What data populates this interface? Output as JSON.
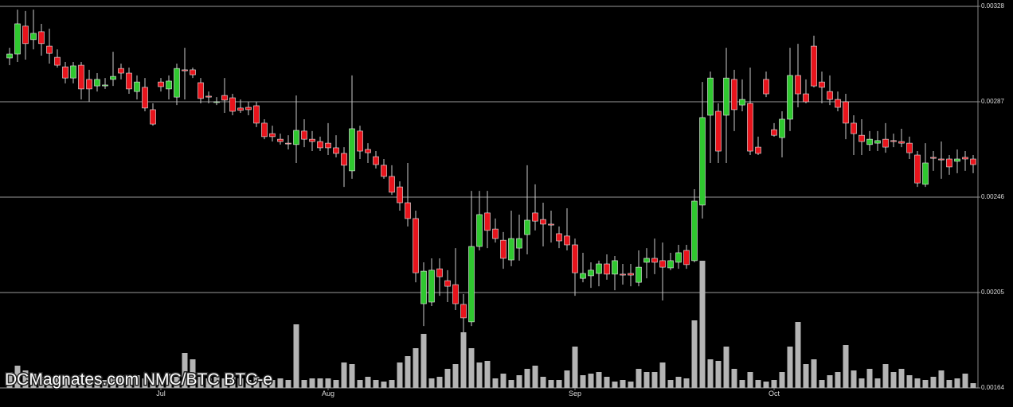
{
  "chart_data": {
    "type": "candlestick",
    "annotation": "DCMagnates.com NMC/BTC BTC-e",
    "categories": [
      null,
      null,
      null,
      null,
      null,
      null,
      null,
      null,
      null,
      null,
      null,
      null,
      null,
      null,
      null,
      null,
      null,
      null,
      null,
      "Jul",
      null,
      null,
      null,
      null,
      null,
      null,
      null,
      null,
      null,
      null,
      null,
      null,
      null,
      null,
      null,
      null,
      null,
      null,
      null,
      null,
      "Aug",
      null,
      null,
      null,
      null,
      null,
      null,
      null,
      null,
      null,
      null,
      null,
      null,
      null,
      null,
      null,
      null,
      null,
      null,
      null,
      null,
      null,
      null,
      null,
      null,
      null,
      null,
      null,
      null,
      null,
      null,
      "Sep",
      null,
      null,
      null,
      null,
      null,
      null,
      null,
      null,
      null,
      null,
      null,
      null,
      null,
      null,
      null,
      null,
      null,
      null,
      null,
      null,
      null,
      null,
      null,
      null,
      "Oct",
      null,
      null,
      null,
      null,
      null,
      null,
      null,
      null,
      null,
      null,
      null,
      null,
      null,
      null,
      null,
      null,
      null,
      null,
      null,
      null,
      null,
      null,
      null,
      null,
      null
    ],
    "open": [
      0.003058,
      0.003075,
      0.003195,
      0.003137,
      0.003171,
      0.003109,
      0.003061,
      0.00302,
      0.002972,
      0.003027,
      0.002966,
      0.002938,
      0.002938,
      0.002966,
      0.003013,
      0.002993,
      0.002914,
      0.002932,
      0.002836,
      0.002955,
      0.002925,
      0.00289,
      0.003007,
      0.003007,
      0.002952,
      0.002894,
      0.002867,
      0.002897,
      0.002887,
      0.002843,
      0.002846,
      0.002853,
      0.002778,
      0.002733,
      0.002709,
      0.002692,
      0.002686,
      0.002744,
      0.002709,
      0.002699,
      0.002692,
      0.002672,
      0.002648,
      0.002573,
      0.002744,
      0.002665,
      0.002634,
      0.002597,
      0.002549,
      0.002504,
      0.002436,
      0.002368,
      0.002002,
      0.002009,
      0.002152,
      0.002101,
      0.002084,
      0.001999,
      0.001924,
      0.002248,
      0.002392,
      0.002323,
      0.002275,
      0.00219,
      0.002241,
      0.002299,
      0.002392,
      0.002364,
      0.002344,
      0.002303,
      0.002293,
      0.002255,
      0.002111,
      0.002122,
      0.002132,
      0.002173,
      0.002129,
      0.002129,
      0.002132,
      0.002094,
      0.00218,
      0.002197,
      0.002187,
      0.002156,
      0.00218,
      0.002231,
      0.002187,
      0.002426,
      0.002812,
      0.002829,
      0.002812,
      0.002966,
      0.002856,
      0.002863,
      0.002675,
      0.002966,
      0.00275,
      0.002716,
      0.002795,
      0.002983,
      0.002904,
      0.003109,
      0.002955,
      0.002914,
      0.00288,
      0.00287,
      0.002778,
      0.002726,
      0.002686,
      0.002692,
      0.002709,
      0.002703,
      0.002699,
      0.002692,
      0.002641,
      0.002515,
      0.002631,
      0.002624,
      0.002624,
      0.002614,
      0.002631,
      0.002624
    ],
    "high": [
      0.003102,
      0.003266,
      0.00326,
      0.003266,
      0.003205,
      0.003184,
      0.003095,
      0.003041,
      0.003041,
      0.003041,
      0.003007,
      0.002993,
      0.002972,
      0.003085,
      0.003034,
      0.003017,
      0.002983,
      0.002972,
      0.002863,
      0.002972,
      0.002983,
      0.003034,
      0.003102,
      0.003017,
      0.002972,
      0.002914,
      0.00289,
      0.002972,
      0.002904,
      0.00288,
      0.00287,
      0.00287,
      0.002795,
      0.002767,
      0.002733,
      0.002726,
      0.002897,
      0.002795,
      0.002744,
      0.00272,
      0.002778,
      0.002726,
      0.002675,
      0.002983,
      0.002767,
      0.002692,
      0.002658,
      0.002624,
      0.002597,
      0.002528,
      0.002607,
      0.002402,
      0.00218,
      0.002197,
      0.002197,
      0.002146,
      0.002241,
      0.002043,
      0.002487,
      0.002487,
      0.002487,
      0.002368,
      0.00231,
      0.002402,
      0.002385,
      0.002597,
      0.002515,
      0.002436,
      0.002402,
      0.002334,
      0.002412,
      0.002282,
      0.002221,
      0.00218,
      0.002187,
      0.002214,
      0.002207,
      0.002173,
      0.002173,
      0.002231,
      0.002241,
      0.002282,
      0.002265,
      0.002221,
      0.002255,
      0.002255,
      0.002494,
      0.002955,
      0.003,
      0.002863,
      0.003102,
      0.003007,
      0.002966,
      0.003017,
      0.00272,
      0.003,
      0.002778,
      0.002829,
      0.003102,
      0.003119,
      0.002966,
      0.003154,
      0.003,
      0.002983,
      0.002914,
      0.002904,
      0.002812,
      0.002795,
      0.002744,
      0.002744,
      0.002778,
      0.002733,
      0.002754,
      0.00272,
      0.002658,
      0.002692,
      0.002658,
      0.002699,
      0.002641,
      0.002665,
      0.002658,
      0.002641
    ],
    "low": [
      0.003027,
      0.003041,
      0.003051,
      0.003095,
      0.003068,
      0.003034,
      0.003017,
      0.002949,
      0.002949,
      0.00288,
      0.00287,
      0.002914,
      0.002925,
      0.002938,
      0.002966,
      0.002904,
      0.00288,
      0.002829,
      0.002767,
      0.002914,
      0.00288,
      0.002856,
      0.00288,
      0.002972,
      0.002863,
      0.002863,
      0.002856,
      0.002822,
      0.002812,
      0.002822,
      0.002812,
      0.002761,
      0.002709,
      0.002699,
      0.002686,
      0.002665,
      0.002607,
      0.002675,
      0.002658,
      0.002658,
      0.002641,
      0.002631,
      0.002504,
      0.002539,
      0.002624,
      0.002607,
      0.002583,
      0.002539,
      0.00247,
      0.002402,
      0.002334,
      0.002094,
      0.001906,
      0.001992,
      0.002036,
      0.002009,
      0.001975,
      0.001879,
      0.001906,
      0.002231,
      0.002241,
      0.002265,
      0.002152,
      0.002163,
      0.002187,
      0.002214,
      0.002317,
      0.002248,
      0.002265,
      0.002241,
      0.002231,
      0.002036,
      0.002094,
      0.00207,
      0.002077,
      0.002105,
      0.00206,
      0.002084,
      0.002077,
      0.002077,
      0.002111,
      0.002129,
      0.002016,
      0.002146,
      0.002152,
      0.002152,
      0.00218,
      0.002368,
      0.002607,
      0.002607,
      0.002607,
      0.002744,
      0.002829,
      0.002641,
      0.002641,
      0.00289,
      0.00272,
      0.002631,
      0.002744,
      0.002846,
      0.002863,
      0.002932,
      0.002863,
      0.002856,
      0.002829,
      0.002709,
      0.002641,
      0.002641,
      0.002658,
      0.002658,
      0.002651,
      0.002675,
      0.002675,
      0.002624,
      0.002504,
      0.002504,
      0.002573,
      0.002539,
      0.002556,
      0.002563,
      0.002573,
      0.002563
    ],
    "close": [
      0.003075,
      0.003205,
      0.00312,
      0.003164,
      0.00312,
      0.003078,
      0.003027,
      0.002972,
      0.003024,
      0.002925,
      0.002925,
      0.002966,
      0.002942,
      0.002979,
      0.002993,
      0.002925,
      0.002955,
      0.002843,
      0.002774,
      0.002935,
      0.002959,
      0.003013,
      0.003003,
      0.002986,
      0.002884,
      0.00289,
      0.00287,
      0.002877,
      0.002829,
      0.002833,
      0.002836,
      0.002778,
      0.00272,
      0.00272,
      0.002699,
      0.002689,
      0.002747,
      0.002709,
      0.002699,
      0.002672,
      0.002672,
      0.002648,
      0.002597,
      0.002754,
      0.002658,
      0.002651,
      0.0026,
      0.002549,
      0.002481,
      0.002436,
      0.002368,
      0.002135,
      0.002142,
      0.002146,
      0.002118,
      0.002077,
      0.002002,
      0.001941,
      0.002248,
      0.002385,
      0.002317,
      0.002282,
      0.002197,
      0.002282,
      0.002282,
      0.002361,
      0.002357,
      0.002344,
      0.00234,
      0.002272,
      0.002255,
      0.002135,
      0.002132,
      0.002146,
      0.002173,
      0.002129,
      0.002187,
      0.002125,
      0.002125,
      0.002159,
      0.002197,
      0.00218,
      0.002159,
      0.002187,
      0.002221,
      0.00217,
      0.002443,
      0.002802,
      0.002972,
      0.002658,
      0.002972,
      0.002836,
      0.00288,
      0.002658,
      0.002648,
      0.002904,
      0.002726,
      0.002795,
      0.002983,
      0.002904,
      0.00287,
      0.002938,
      0.002932,
      0.00288,
      0.002846,
      0.002778,
      0.002733,
      0.002699,
      0.002709,
      0.002703,
      0.002675,
      0.002699,
      0.002692,
      0.002651,
      0.002521,
      0.002607,
      0.002627,
      0.00262,
      0.00259,
      0.002624,
      0.002624,
      0.0026
    ],
    "volume": [
      20,
      28,
      22,
      18,
      14,
      12,
      16,
      12,
      12,
      16,
      12,
      14,
      10,
      12,
      16,
      14,
      16,
      12,
      10,
      10,
      18,
      14,
      44,
      36,
      14,
      12,
      14,
      12,
      14,
      12,
      10,
      14,
      10,
      10,
      12,
      10,
      80,
      10,
      12,
      12,
      12,
      10,
      32,
      30,
      10,
      14,
      10,
      8,
      10,
      32,
      40,
      50,
      68,
      12,
      14,
      24,
      30,
      70,
      50,
      32,
      34,
      12,
      18,
      10,
      16,
      24,
      28,
      14,
      10,
      10,
      22,
      52,
      16,
      18,
      20,
      14,
      8,
      10,
      8,
      24,
      20,
      20,
      32,
      10,
      14,
      12,
      85,
      160,
      36,
      34,
      52,
      24,
      10,
      20,
      10,
      8,
      10,
      20,
      52,
      83,
      30,
      36,
      10,
      16,
      20,
      54,
      22,
      12,
      24,
      12,
      30,
      20,
      24,
      16,
      12,
      10,
      14,
      22,
      10,
      12,
      18,
      6
    ],
    "ylim": [
      0.00164,
      0.00328
    ],
    "yticks": [
      0.00164,
      0.00205,
      0.00246,
      0.00287,
      0.00328
    ],
    "grid": true,
    "up_color": "#2fc82f",
    "down_color": "#e8141c",
    "volume_color": "#b4b4b4"
  }
}
